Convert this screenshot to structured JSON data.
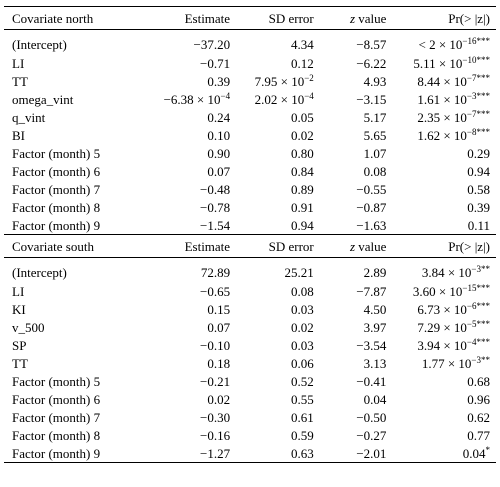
{
  "north": {
    "headers": [
      "Covariate north",
      "Estimate",
      "SD error",
      "z value",
      "Pr(> |z|)"
    ],
    "rows": [
      [
        "(Intercept)",
        "−37.20",
        "4.34",
        "−8.57",
        "< 2 × 10",
        "−16",
        "***"
      ],
      [
        "LI",
        "−0.71",
        "0.12",
        "−6.22",
        "5.11 × 10",
        "−10",
        "***"
      ],
      [
        "TT",
        "0.39",
        "7.95 × 10",
        "4.93",
        "8.44 × 10",
        "−7",
        "***"
      ],
      [
        "omega_vint",
        "−6.38 × 10",
        "2.02 × 10",
        "−3.15",
        "1.61 × 10",
        "−3",
        "***"
      ],
      [
        "q_vint",
        "0.24",
        "0.05",
        "5.17",
        "2.35 × 10",
        "−7",
        "***"
      ],
      [
        "BI",
        "0.10",
        "0.02",
        "5.65",
        "1.62 × 10",
        "−8",
        "***"
      ],
      [
        "Factor (month) 5",
        "0.90",
        "0.80",
        "1.07",
        "0.29",
        "",
        ""
      ],
      [
        "Factor (month) 6",
        "0.07",
        "0.84",
        "0.08",
        "0.94",
        "",
        ""
      ],
      [
        "Factor (month) 7",
        "−0.48",
        "0.89",
        "−0.55",
        "0.58",
        "",
        ""
      ],
      [
        "Factor (month) 8",
        "−0.78",
        "0.91",
        "−0.87",
        "0.39",
        "",
        ""
      ],
      [
        "Factor (month) 9",
        "−1.54",
        "0.94",
        "−1.63",
        "0.11",
        "",
        ""
      ]
    ],
    "est_exps": {
      "omega_vint": "−4"
    },
    "sd_exps": {
      "TT": "−2",
      "omega_vint": "−4"
    }
  },
  "south": {
    "headers": [
      "Covariate south",
      "Estimate",
      "SD error",
      "z value",
      "Pr(> |z|)"
    ],
    "rows": [
      [
        "(Intercept)",
        "72.89",
        "25.21",
        "2.89",
        "3.84 × 10",
        "−3",
        "**"
      ],
      [
        "LI",
        "−0.65",
        "0.08",
        "−7.87",
        "3.60 × 10",
        "−15",
        "***"
      ],
      [
        "KI",
        "0.15",
        "0.03",
        "4.50",
        "6.73 × 10",
        "−6",
        "***"
      ],
      [
        "v_500",
        "0.07",
        "0.02",
        "3.97",
        "7.29 × 10",
        "−5",
        "***"
      ],
      [
        "SP",
        "−0.10",
        "0.03",
        "−3.54",
        "3.94 × 10",
        "−4",
        "***"
      ],
      [
        "TT",
        "0.18",
        "0.06",
        "3.13",
        "1.77 × 10",
        "−3",
        "**"
      ],
      [
        "Factor (month) 5",
        "−0.21",
        "0.52",
        "−0.41",
        "0.68",
        "",
        ""
      ],
      [
        "Factor (month) 6",
        "0.02",
        "0.55",
        "0.04",
        "0.96",
        "",
        ""
      ],
      [
        "Factor (month) 7",
        "−0.30",
        "0.61",
        "−0.50",
        "0.62",
        "",
        ""
      ],
      [
        "Factor (month) 8",
        "−0.16",
        "0.59",
        "−0.27",
        "0.77",
        "",
        ""
      ],
      [
        "Factor (month) 9",
        "−1.27",
        "0.63",
        "−2.01",
        "0.04",
        "",
        "*"
      ]
    ],
    "est_exps": {},
    "sd_exps": {}
  }
}
